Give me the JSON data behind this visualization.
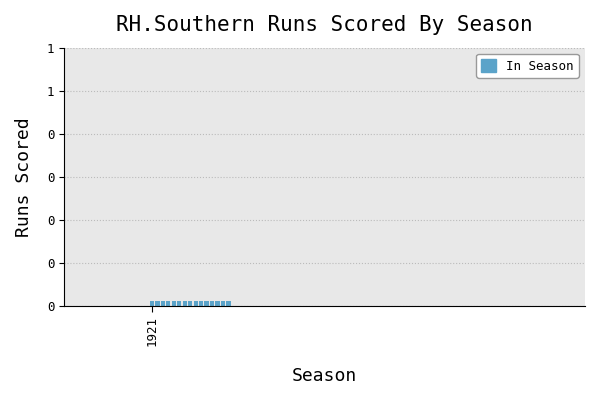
{
  "title": "RH.Southern Runs Scored By Season",
  "xlabel": "Season",
  "ylabel": "Runs Scored",
  "bar_color": "#5ba3c9",
  "legend_label": "In Season",
  "seasons": [
    1921,
    1922,
    1923,
    1924,
    1925,
    1926,
    1927,
    1928,
    1929,
    1930,
    1931,
    1932,
    1933,
    1934,
    1935
  ],
  "runs": [
    0.02,
    0.02,
    0.02,
    0.02,
    0.02,
    0.02,
    0.02,
    0.02,
    0.02,
    0.02,
    0.02,
    0.02,
    0.02,
    0.02,
    0.02
  ],
  "xlim": [
    1905,
    2000
  ],
  "ylim": [
    0,
    1.2
  ],
  "yticks": [
    0.0,
    0.2,
    0.4,
    0.6,
    0.8,
    1.0,
    1.2
  ],
  "grid_color": "#bbbbbb",
  "background_color": "#ffffff",
  "plot_bg_color": "#e8e8e8",
  "title_fontsize": 15,
  "axis_label_fontsize": 13,
  "tick_fontsize": 9,
  "bar_width": 0.8,
  "font_family": "monospace"
}
